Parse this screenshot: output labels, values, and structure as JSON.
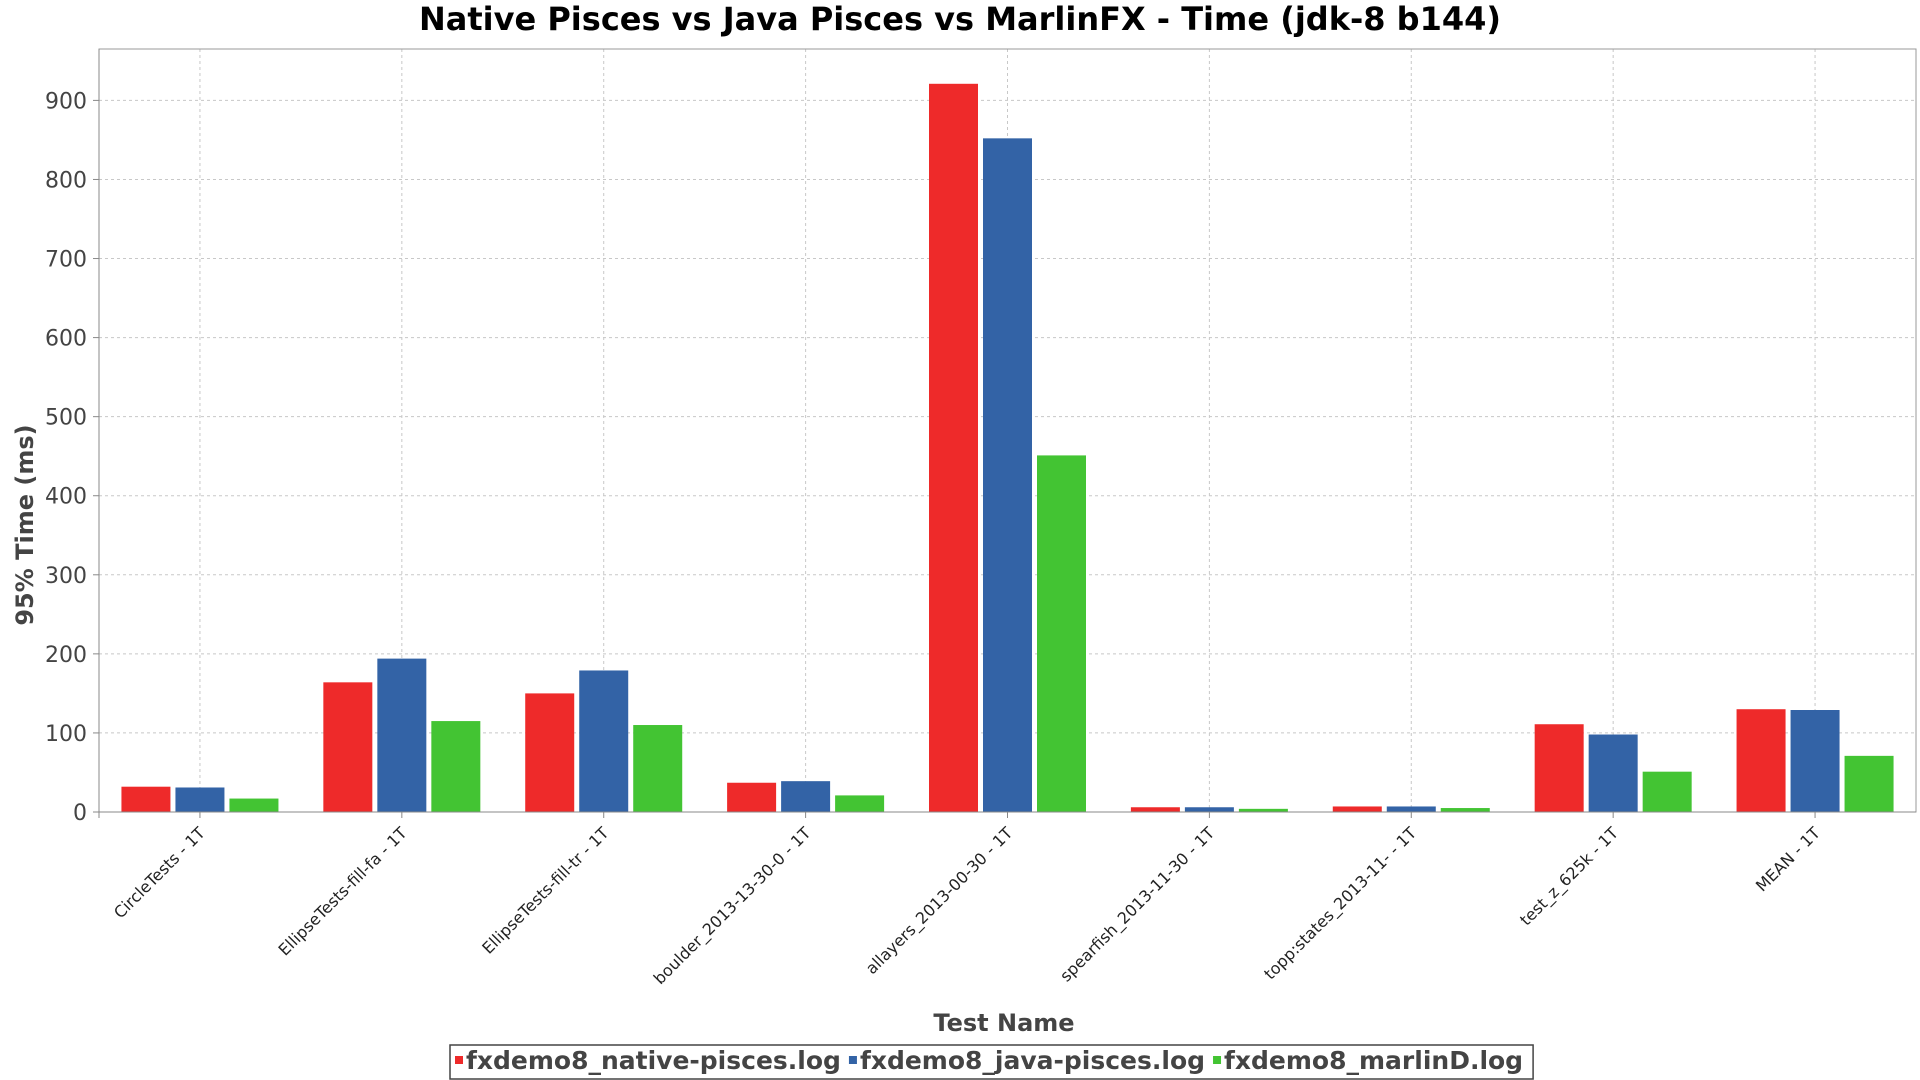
{
  "chart_data": {
    "type": "bar",
    "title": "Native Pisces vs Java Pisces vs MarlinFX - Time (jdk-8 b144)",
    "xlabel": "Test Name",
    "ylabel": "95% Time (ms)",
    "ylim": [
      0,
      965
    ],
    "yticks": [
      0,
      100,
      200,
      300,
      400,
      500,
      600,
      700,
      800,
      900
    ],
    "grid": true,
    "legend_position": "bottom",
    "categories": [
      "CircleTests - 1T",
      "EllipseTests-fill-fa - 1T",
      "EllipseTests-fill-tr - 1T",
      "boulder_2013-13-30-0 - 1T",
      "allayers_2013-00-30 - 1T",
      "spearfish_2013-11-30 - 1T",
      "topp:states_2013-11- - 1T",
      "test_z_625k - 1T",
      "MEAN - 1T"
    ],
    "series": [
      {
        "name": "fxdemo8_native-pisces.log",
        "color": "#ee2a2a",
        "values": [
          32,
          164,
          150,
          37,
          921,
          6,
          7,
          111,
          130
        ]
      },
      {
        "name": "fxdemo8_java-pisces.log",
        "color": "#3363a6",
        "values": [
          31,
          194,
          179,
          39,
          852,
          6,
          7,
          98,
          129
        ]
      },
      {
        "name": "fxdemo8_marlinD.log",
        "color": "#43c433",
        "values": [
          17,
          115,
          110,
          21,
          451,
          4,
          5,
          51,
          71
        ]
      }
    ]
  }
}
